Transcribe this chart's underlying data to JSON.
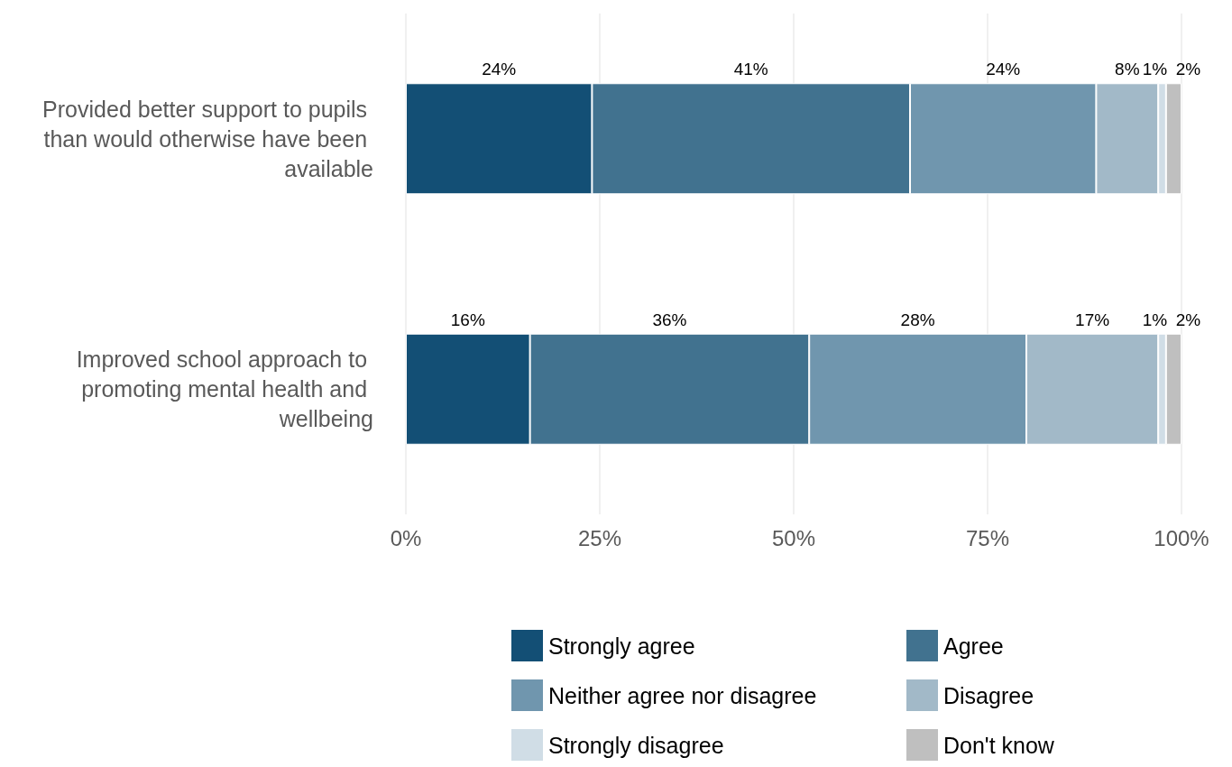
{
  "chart_data": {
    "type": "bar",
    "orientation": "horizontal",
    "stacked": true,
    "categories": [
      "Provided better support to pupils than would otherwise have been available",
      "Improved school approach to promoting mental health and wellbeing"
    ],
    "series": [
      {
        "name": "Strongly agree",
        "color": "#134f75",
        "values": [
          24,
          16
        ],
        "value_labels": [
          "24%",
          "16%"
        ]
      },
      {
        "name": "Agree",
        "color": "#41728f",
        "values": [
          41,
          36
        ],
        "value_labels": [
          "41%",
          "36%"
        ]
      },
      {
        "name": "Neither agree nor disagree",
        "color": "#7096ae",
        "values": [
          24,
          28
        ],
        "value_labels": [
          "24%",
          "28%"
        ]
      },
      {
        "name": "Disagree",
        "color": "#a2b9c8",
        "values": [
          8,
          17
        ],
        "value_labels": [
          "8%",
          "17%"
        ]
      },
      {
        "name": "Strongly disagree",
        "color": "#d0dde6",
        "values": [
          1,
          1
        ],
        "value_labels": [
          "1%",
          "1%"
        ]
      },
      {
        "name": "Don't know",
        "color": "#bfbfbf",
        "values": [
          2,
          2
        ],
        "value_labels": [
          "2%",
          "2%"
        ]
      }
    ],
    "xlim": [
      0,
      100
    ],
    "xticks": [
      {
        "value": 0,
        "label": "0%"
      },
      {
        "value": 25,
        "label": "25%"
      },
      {
        "value": 50,
        "label": "50%"
      },
      {
        "value": 75,
        "label": "75%"
      },
      {
        "value": 100,
        "label": "100%"
      }
    ],
    "grid": "x",
    "legend": "bottom"
  }
}
